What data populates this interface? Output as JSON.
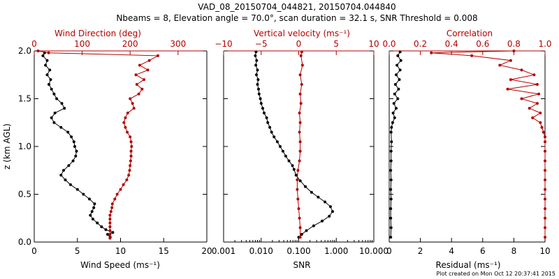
{
  "figure": {
    "title_line1": "VAD_08_20150704_044821, 20150704.044840",
    "title_line2": "Nbeams = 8, Elevation angle = 70.0°, scan duration = 32.1 s, SNR Threshold = 0.008",
    "footer": "Plot created on Mon Oct 12 20:37:41 2015"
  },
  "colors": {
    "black": "#000000",
    "red": "#b40000"
  },
  "chart_data": [
    {
      "type": "line",
      "panel": "wind",
      "ylabel": "z (km AGL)",
      "ylim": [
        0.0,
        2.0
      ],
      "y_ticks": [
        "0.0",
        "0.5",
        "1.0",
        "1.5",
        "2.0"
      ],
      "bottom_axis": {
        "label": "Wind Speed (ms⁻¹)",
        "range": [
          0,
          20
        ],
        "ticks": [
          "0",
          "5",
          "10",
          "15",
          "20"
        ],
        "scale": "linear"
      },
      "top_axis": {
        "label": "Wind Direction (deg)",
        "range": [
          0,
          360
        ],
        "ticks": [
          "0",
          "100",
          "200",
          "300"
        ],
        "scale": "linear"
      },
      "series": [
        {
          "name": "Wind Speed",
          "color": "#000000",
          "axis": "bottom",
          "points": [
            [
              8.8,
              0.05
            ],
            [
              8.5,
              0.08
            ],
            [
              9.1,
              0.1
            ],
            [
              8.3,
              0.13
            ],
            [
              7.8,
              0.16
            ],
            [
              7.3,
              0.2
            ],
            [
              6.8,
              0.24
            ],
            [
              6.5,
              0.28
            ],
            [
              6.7,
              0.32
            ],
            [
              6.9,
              0.36
            ],
            [
              7.0,
              0.4
            ],
            [
              6.4,
              0.45
            ],
            [
              5.7,
              0.5
            ],
            [
              5.0,
              0.55
            ],
            [
              4.2,
              0.6
            ],
            [
              3.6,
              0.65
            ],
            [
              3.1,
              0.7
            ],
            [
              3.4,
              0.75
            ],
            [
              4.0,
              0.8
            ],
            [
              4.5,
              0.85
            ],
            [
              4.8,
              0.9
            ],
            [
              4.9,
              0.95
            ],
            [
              4.7,
              1.0
            ],
            [
              4.6,
              1.05
            ],
            [
              4.3,
              1.1
            ],
            [
              3.9,
              1.15
            ],
            [
              3.1,
              1.2
            ],
            [
              2.3,
              1.25
            ],
            [
              2.0,
              1.3
            ],
            [
              2.4,
              1.35
            ],
            [
              3.5,
              1.4
            ],
            [
              3.2,
              1.45
            ],
            [
              2.6,
              1.5
            ],
            [
              2.3,
              1.55
            ],
            [
              2.0,
              1.6
            ],
            [
              1.7,
              1.65
            ],
            [
              1.9,
              1.7
            ],
            [
              1.5,
              1.75
            ],
            [
              1.8,
              1.8
            ],
            [
              1.3,
              1.85
            ],
            [
              1.5,
              1.9
            ],
            [
              1.0,
              1.95
            ],
            [
              1.2,
              1.98
            ]
          ]
        },
        {
          "name": "Wind Direction",
          "color": "#b40000",
          "axis": "top",
          "points": [
            [
              158,
              0.04
            ],
            [
              158,
              0.08
            ],
            [
              158,
              0.12
            ],
            [
              158,
              0.16
            ],
            [
              158,
              0.2
            ],
            [
              158,
              0.24
            ],
            [
              158,
              0.28
            ],
            [
              160,
              0.32
            ],
            [
              162,
              0.36
            ],
            [
              163,
              0.4
            ],
            [
              168,
              0.45
            ],
            [
              173,
              0.5
            ],
            [
              180,
              0.55
            ],
            [
              186,
              0.6
            ],
            [
              193,
              0.65
            ],
            [
              197,
              0.7
            ],
            [
              199,
              0.75
            ],
            [
              200,
              0.8
            ],
            [
              201,
              0.85
            ],
            [
              202,
              0.9
            ],
            [
              202,
              0.95
            ],
            [
              203,
              1.0
            ],
            [
              202,
              1.05
            ],
            [
              200,
              1.1
            ],
            [
              194,
              1.15
            ],
            [
              190,
              1.2
            ],
            [
              187,
              1.25
            ],
            [
              190,
              1.3
            ],
            [
              195,
              1.35
            ],
            [
              208,
              1.4
            ],
            [
              205,
              1.45
            ],
            [
              200,
              1.5
            ],
            [
              218,
              1.55
            ],
            [
              225,
              1.6
            ],
            [
              214,
              1.65
            ],
            [
              229,
              1.7
            ],
            [
              212,
              1.75
            ],
            [
              237,
              1.8
            ],
            [
              220,
              1.85
            ],
            [
              240,
              1.9
            ],
            [
              258,
              1.95
            ],
            [
              30,
              1.98
            ],
            [
              8,
              2.0
            ]
          ]
        }
      ]
    },
    {
      "type": "line",
      "panel": "vertical",
      "ylim": [
        0.0,
        2.0
      ],
      "bottom_axis": {
        "label": "SNR",
        "range": [
          0.001,
          10
        ],
        "ticks": [
          "0.001",
          "0.010",
          "0.100",
          "1.000",
          "10.000"
        ],
        "scale": "log"
      },
      "top_axis": {
        "label": "Vertical velocity (ms⁻¹)",
        "range": [
          -10,
          10
        ],
        "ticks": [
          "−10",
          "−5",
          "0",
          "5",
          "10"
        ],
        "scale": "linear"
      },
      "series": [
        {
          "name": "SNR",
          "color": "#000000",
          "axis": "bottom",
          "points": [
            [
              0.1,
              0.05
            ],
            [
              0.12,
              0.08
            ],
            [
              0.16,
              0.12
            ],
            [
              0.25,
              0.17
            ],
            [
              0.42,
              0.22
            ],
            [
              0.65,
              0.27
            ],
            [
              0.8,
              0.32
            ],
            [
              0.7,
              0.37
            ],
            [
              0.5,
              0.42
            ],
            [
              0.33,
              0.47
            ],
            [
              0.22,
              0.52
            ],
            [
              0.15,
              0.58
            ],
            [
              0.11,
              0.64
            ],
            [
              0.085,
              0.7
            ],
            [
              0.075,
              0.76
            ],
            [
              0.068,
              0.8
            ],
            [
              0.055,
              0.85
            ],
            [
              0.045,
              0.9
            ],
            [
              0.038,
              0.95
            ],
            [
              0.032,
              1.0
            ],
            [
              0.027,
              1.05
            ],
            [
              0.022,
              1.1
            ],
            [
              0.019,
              1.15
            ],
            [
              0.017,
              1.2
            ],
            [
              0.015,
              1.25
            ],
            [
              0.014,
              1.3
            ],
            [
              0.012,
              1.35
            ],
            [
              0.011,
              1.4
            ],
            [
              0.01,
              1.45
            ],
            [
              0.0095,
              1.5
            ],
            [
              0.0088,
              1.55
            ],
            [
              0.0085,
              1.6
            ],
            [
              0.008,
              1.65
            ],
            [
              0.0083,
              1.7
            ],
            [
              0.0075,
              1.75
            ],
            [
              0.008,
              1.8
            ],
            [
              0.0072,
              1.85
            ],
            [
              0.0076,
              1.9
            ],
            [
              0.007,
              1.95
            ],
            [
              0.0073,
              1.99
            ]
          ]
        },
        {
          "name": "Vertical velocity",
          "color": "#b40000",
          "axis": "top",
          "points": [
            [
              0.2,
              0.05
            ],
            [
              0.2,
              0.15
            ],
            [
              0.1,
              0.25
            ],
            [
              0.0,
              0.35
            ],
            [
              -0.1,
              0.45
            ],
            [
              -0.2,
              0.55
            ],
            [
              -0.2,
              0.65
            ],
            [
              -0.1,
              0.75
            ],
            [
              0.1,
              0.85
            ],
            [
              0.2,
              0.95
            ],
            [
              0.2,
              1.05
            ],
            [
              0.1,
              1.15
            ],
            [
              0.2,
              1.25
            ],
            [
              0.1,
              1.35
            ],
            [
              0.3,
              1.45
            ],
            [
              0.2,
              1.55
            ],
            [
              0.4,
              1.65
            ],
            [
              0.2,
              1.75
            ],
            [
              0.5,
              1.85
            ],
            [
              0.3,
              1.95
            ],
            [
              0.4,
              1.99
            ]
          ]
        }
      ]
    },
    {
      "type": "line",
      "panel": "residual",
      "ylim": [
        0.0,
        2.0
      ],
      "bottom_axis": {
        "label": "Residual (ms⁻¹)",
        "range": [
          0,
          10
        ],
        "ticks": [
          "0",
          "2",
          "4",
          "6",
          "8",
          "10"
        ],
        "scale": "linear"
      },
      "top_axis": {
        "label": "Correlation",
        "range": [
          0.0,
          1.0
        ],
        "ticks": [
          "0.0",
          "0.2",
          "0.4",
          "0.6",
          "0.8",
          "1.0"
        ],
        "scale": "linear"
      },
      "series": [
        {
          "name": "Residual",
          "color": "#000000",
          "axis": "bottom",
          "points": [
            [
              0.1,
              0.05
            ],
            [
              0.12,
              0.15
            ],
            [
              0.1,
              0.25
            ],
            [
              0.1,
              0.35
            ],
            [
              0.12,
              0.45
            ],
            [
              0.1,
              0.55
            ],
            [
              0.12,
              0.65
            ],
            [
              0.1,
              0.75
            ],
            [
              0.12,
              0.85
            ],
            [
              0.12,
              0.95
            ],
            [
              0.15,
              1.05
            ],
            [
              0.12,
              1.15
            ],
            [
              0.15,
              1.2
            ],
            [
              0.22,
              1.25
            ],
            [
              0.35,
              1.3
            ],
            [
              0.25,
              1.35
            ],
            [
              0.45,
              1.4
            ],
            [
              0.3,
              1.45
            ],
            [
              0.55,
              1.5
            ],
            [
              0.35,
              1.55
            ],
            [
              0.6,
              1.6
            ],
            [
              0.4,
              1.65
            ],
            [
              0.65,
              1.7
            ],
            [
              0.45,
              1.75
            ],
            [
              0.7,
              1.8
            ],
            [
              0.5,
              1.85
            ],
            [
              0.75,
              1.9
            ],
            [
              0.55,
              1.95
            ],
            [
              0.7,
              1.99
            ]
          ]
        },
        {
          "name": "Correlation",
          "color": "#b40000",
          "axis": "top",
          "points": [
            [
              1.0,
              0.05
            ],
            [
              1.0,
              0.15
            ],
            [
              1.0,
              0.25
            ],
            [
              1.0,
              0.35
            ],
            [
              1.0,
              0.45
            ],
            [
              1.0,
              0.55
            ],
            [
              1.0,
              0.65
            ],
            [
              1.0,
              0.75
            ],
            [
              1.0,
              0.85
            ],
            [
              1.0,
              0.95
            ],
            [
              1.0,
              1.05
            ],
            [
              1.0,
              1.1
            ],
            [
              0.99,
              1.15
            ],
            [
              0.98,
              1.2
            ],
            [
              0.97,
              1.25
            ],
            [
              0.92,
              1.3
            ],
            [
              0.97,
              1.35
            ],
            [
              0.9,
              1.4
            ],
            [
              0.95,
              1.45
            ],
            [
              0.85,
              1.5
            ],
            [
              0.96,
              1.55
            ],
            [
              0.76,
              1.6
            ],
            [
              0.95,
              1.65
            ],
            [
              0.78,
              1.7
            ],
            [
              0.93,
              1.75
            ],
            [
              0.85,
              1.8
            ],
            [
              0.71,
              1.85
            ],
            [
              0.78,
              1.9
            ],
            [
              0.53,
              1.95
            ],
            [
              0.27,
              1.98
            ],
            [
              0.8,
              2.0
            ]
          ]
        }
      ]
    }
  ]
}
